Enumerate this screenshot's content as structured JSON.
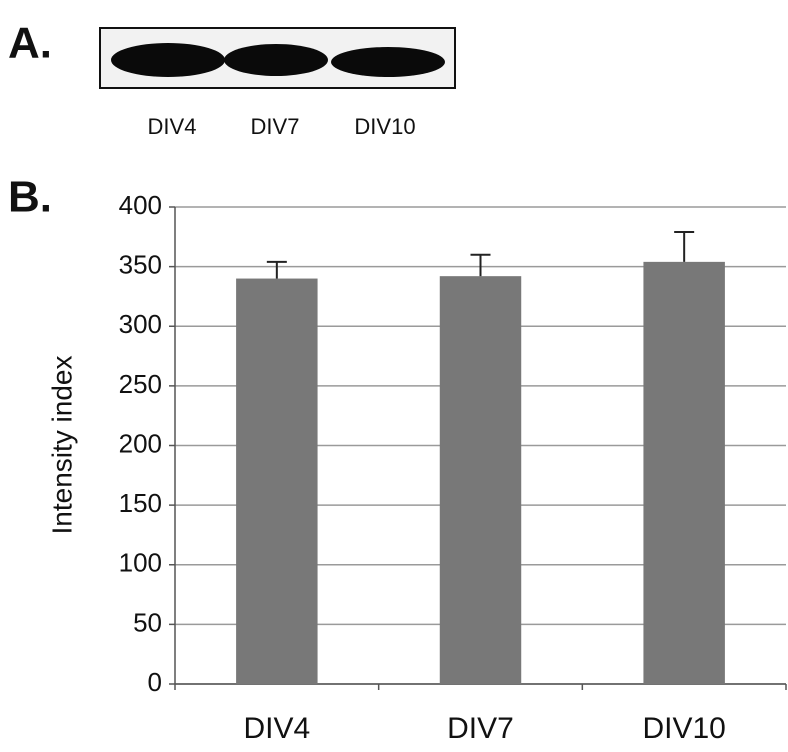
{
  "panel_labels": [
    "A.",
    "B."
  ],
  "blot": {
    "lanes": [
      "DIV4",
      "DIV7",
      "DIV10"
    ]
  },
  "chart_data": {
    "type": "bar",
    "y_label": "Intensity index",
    "categories": [
      "DIV4",
      "DIV7",
      "DIV10"
    ],
    "values": [
      340,
      342,
      354
    ],
    "errors": [
      14,
      18,
      25
    ],
    "color": "#787878",
    "ylim": [
      0,
      400
    ],
    "yticks": [
      0,
      50,
      100,
      150,
      200,
      250,
      300,
      350,
      400
    ],
    "grid": true
  }
}
